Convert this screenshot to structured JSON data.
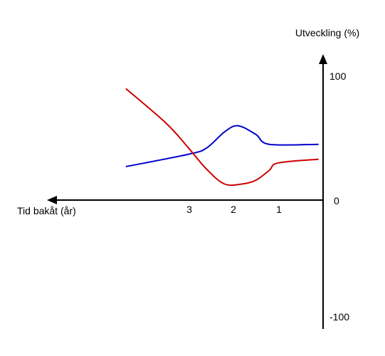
{
  "chart_data": {
    "type": "line",
    "ylabel": "Utveckling (%)",
    "xlabel": "Tid bakåt (år)",
    "x_ticks": [
      "3",
      "2",
      "1"
    ],
    "y_ticks": [
      "100",
      "0",
      "-100"
    ],
    "xlim": [
      4.55,
      0
    ],
    "ylim": [
      -100,
      100
    ],
    "grid": false,
    "series": [
      {
        "color": "#0000cc",
        "points": [
          [
            4.4,
            27
          ],
          [
            3.0,
            37
          ],
          [
            2.6,
            42
          ],
          [
            2.2,
            55
          ],
          [
            1.9,
            60
          ],
          [
            1.5,
            53
          ],
          [
            1.2,
            45
          ],
          [
            0.1,
            45
          ]
        ]
      },
      {
        "color": "#cc0000",
        "points": [
          [
            4.4,
            90
          ],
          [
            3.5,
            62
          ],
          [
            3.0,
            42
          ],
          [
            2.6,
            25
          ],
          [
            2.2,
            13
          ],
          [
            1.8,
            13
          ],
          [
            1.5,
            16
          ],
          [
            1.2,
            24
          ],
          [
            1.0,
            30
          ],
          [
            0.1,
            33
          ]
        ]
      }
    ]
  }
}
